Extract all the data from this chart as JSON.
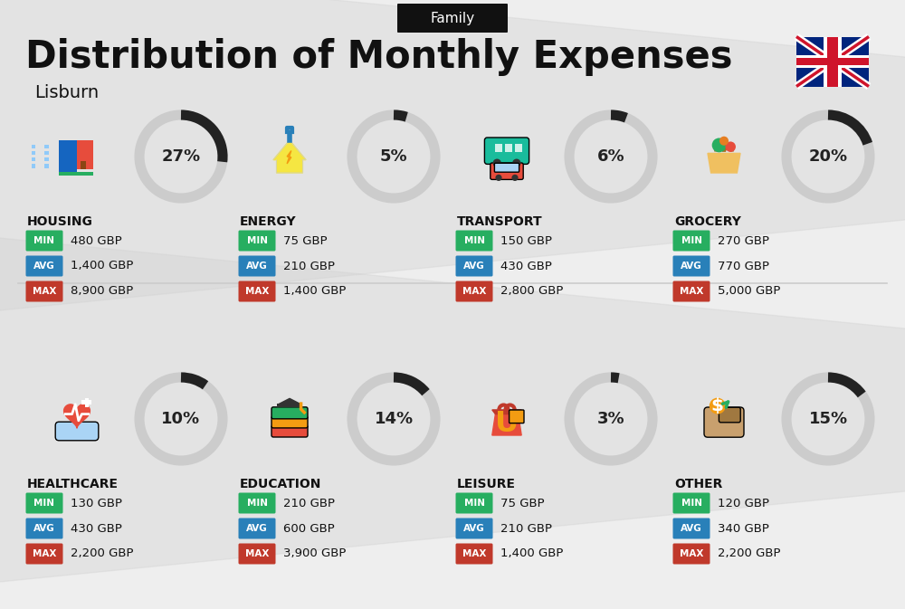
{
  "title": "Distribution of Monthly Expenses",
  "subtitle": "Family",
  "location": "Lisburn",
  "bg_color": "#eeeeee",
  "categories": [
    {
      "name": "HOUSING",
      "percent": 27,
      "min": "480 GBP",
      "avg": "1,400 GBP",
      "max": "8,900 GBP",
      "row": 0,
      "col": 0,
      "icon_color": "#2980b9"
    },
    {
      "name": "ENERGY",
      "percent": 5,
      "min": "75 GBP",
      "avg": "210 GBP",
      "max": "1,400 GBP",
      "row": 0,
      "col": 1,
      "icon_color": "#f39c12"
    },
    {
      "name": "TRANSPORT",
      "percent": 6,
      "min": "150 GBP",
      "avg": "430 GBP",
      "max": "2,800 GBP",
      "row": 0,
      "col": 2,
      "icon_color": "#1abc9c"
    },
    {
      "name": "GROCERY",
      "percent": 20,
      "min": "270 GBP",
      "avg": "770 GBP",
      "max": "5,000 GBP",
      "row": 0,
      "col": 3,
      "icon_color": "#e67e22"
    },
    {
      "name": "HEALTHCARE",
      "percent": 10,
      "min": "130 GBP",
      "avg": "430 GBP",
      "max": "2,200 GBP",
      "row": 1,
      "col": 0,
      "icon_color": "#e74c3c"
    },
    {
      "name": "EDUCATION",
      "percent": 14,
      "min": "210 GBP",
      "avg": "600 GBP",
      "max": "3,900 GBP",
      "row": 1,
      "col": 1,
      "icon_color": "#8e44ad"
    },
    {
      "name": "LEISURE",
      "percent": 3,
      "min": "75 GBP",
      "avg": "210 GBP",
      "max": "1,400 GBP",
      "row": 1,
      "col": 2,
      "icon_color": "#e74c3c"
    },
    {
      "name": "OTHER",
      "percent": 15,
      "min": "120 GBP",
      "avg": "340 GBP",
      "max": "2,200 GBP",
      "row": 1,
      "col": 3,
      "icon_color": "#d4ac6e"
    }
  ],
  "min_color": "#27ae60",
  "avg_color": "#2980b9",
  "max_color": "#c0392b",
  "text_color": "#111111",
  "arc_bg_color": "#cccccc",
  "arc_fg_color": "#222222",
  "stripe_color": "#d0d0d0",
  "divider_color": "#cccccc"
}
